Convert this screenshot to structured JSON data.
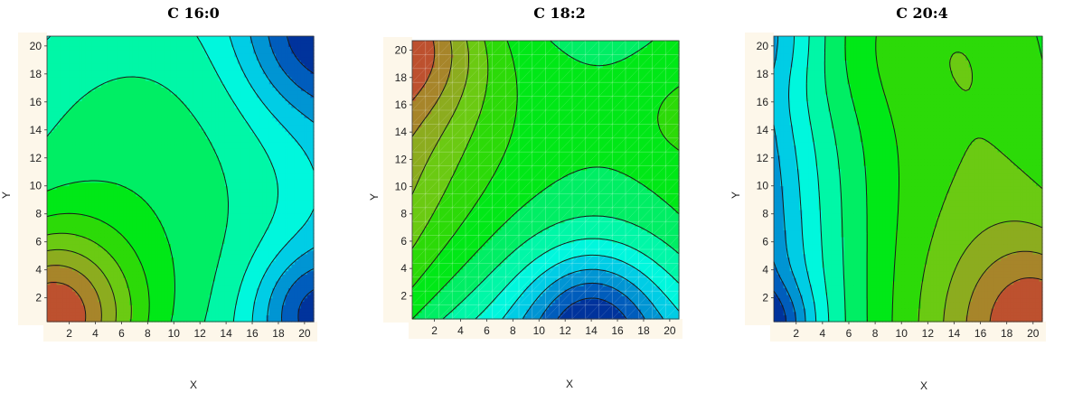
{
  "chart_data": [
    {
      "type": "heatmap",
      "title": "C 16:0",
      "xlabel": "X",
      "ylabel": "Y",
      "xlim": [
        0.3,
        20.7
      ],
      "ylim": [
        0.3,
        20.7
      ],
      "xticks": [
        2,
        4,
        6,
        8,
        10,
        12,
        14,
        16,
        18,
        20
      ],
      "yticks": [
        2,
        4,
        6,
        8,
        10,
        12,
        14,
        16,
        18,
        20
      ],
      "colormap": "blue-cyan-green-olive-red",
      "grid": false,
      "mesh_overlay": false,
      "surface": {
        "low_regions": [
          [
            20,
            20
          ],
          [
            20,
            1
          ]
        ],
        "high_regions": [
          [
            0.5,
            0.5
          ]
        ],
        "plateau_center": [
          7,
          8
        ]
      }
    },
    {
      "type": "heatmap",
      "title": "C 18:2",
      "xlabel": "X",
      "ylabel": "Y",
      "xlim": [
        0.3,
        20.7
      ],
      "ylim": [
        0.3,
        20.7
      ],
      "xticks": [
        2,
        4,
        6,
        8,
        10,
        12,
        14,
        16,
        18,
        20
      ],
      "yticks": [
        2,
        4,
        6,
        8,
        10,
        12,
        14,
        16,
        18,
        20
      ],
      "colormap": "blue-cyan-green-olive-red",
      "grid": false,
      "mesh_overlay": true,
      "surface": {
        "low_regions": [
          [
            14,
            0.5
          ]
        ],
        "high_regions": [
          [
            0.5,
            20.5
          ],
          [
            20.5,
            15
          ]
        ],
        "saddle_center": [
          14.5,
          15
        ]
      }
    },
    {
      "type": "heatmap",
      "title": "C 20:4",
      "xlabel": "X",
      "ylabel": "Y",
      "xlim": [
        0.3,
        20.7
      ],
      "ylim": [
        0.3,
        20.7
      ],
      "xticks": [
        2,
        4,
        6,
        8,
        10,
        12,
        14,
        16,
        18,
        20
      ],
      "yticks": [
        2,
        4,
        6,
        8,
        10,
        12,
        14,
        16,
        18,
        20
      ],
      "colormap": "blue-cyan-green-olive-red",
      "grid": false,
      "mesh_overlay": false,
      "surface": {
        "low_regions": [
          [
            0.5,
            0.5
          ],
          [
            0.5,
            20
          ]
        ],
        "high_regions": [
          [
            20.5,
            0.5
          ]
        ],
        "plateau_center": [
          12,
          12
        ]
      }
    }
  ]
}
